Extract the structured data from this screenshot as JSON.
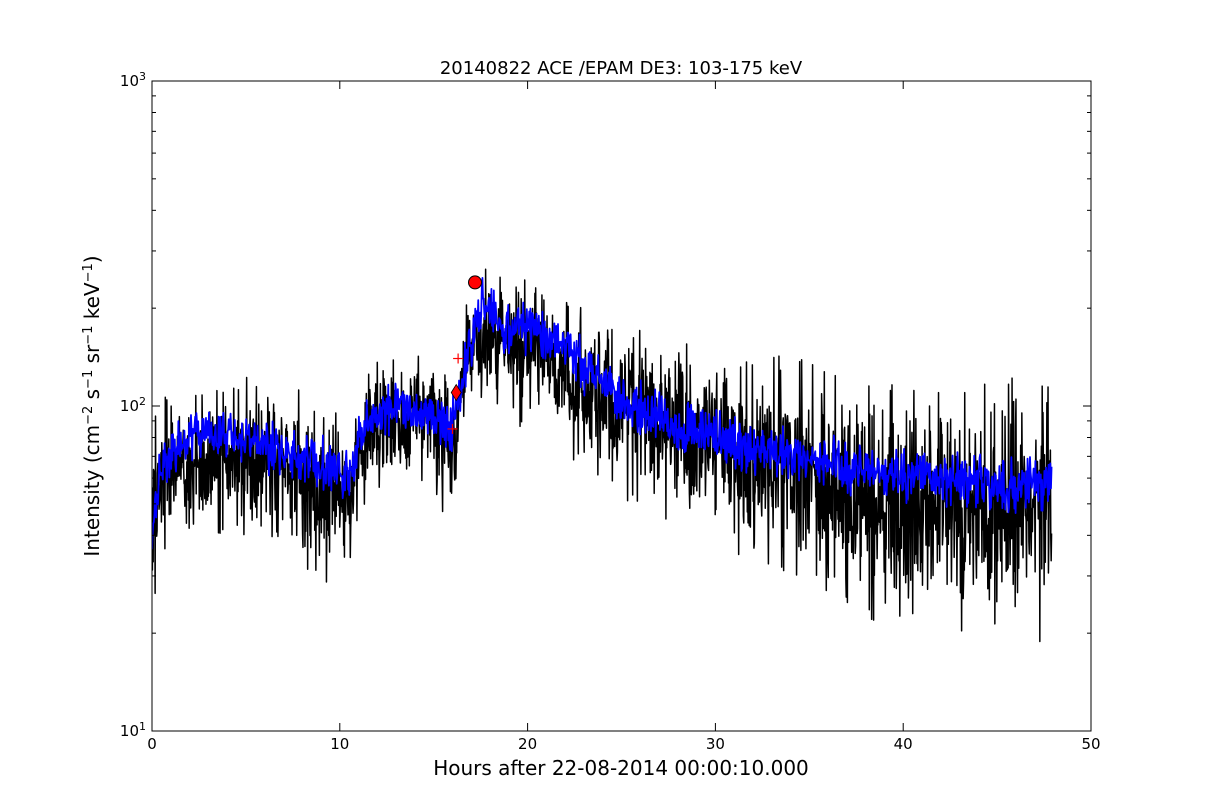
{
  "chart_data": {
    "type": "line",
    "title": "20140822 ACE /EPAM DE3: 103-175 keV",
    "xlabel": "Hours after 22-08-2014 00:00:10.000",
    "ylabel": {
      "parts": [
        {
          "t": "Intensity (cm",
          "sup": false
        },
        {
          "t": "−2",
          "sup": true
        },
        {
          "t": " s",
          "sup": false
        },
        {
          "t": "−1",
          "sup": true
        },
        {
          "t": " sr",
          "sup": false
        },
        {
          "t": "−1",
          "sup": true
        },
        {
          "t": " keV",
          "sup": false
        },
        {
          "t": "−1",
          "sup": true
        },
        {
          "t": ")",
          "sup": false
        }
      ]
    },
    "xlim": [
      0,
      50
    ],
    "ylim": [
      10,
      1000
    ],
    "yscale": "log",
    "grid": false,
    "x_ticks": [
      {
        "value": 0,
        "label": "0"
      },
      {
        "value": 10,
        "label": "10"
      },
      {
        "value": 20,
        "label": "20"
      },
      {
        "value": 30,
        "label": "30"
      },
      {
        "value": 40,
        "label": "40"
      },
      {
        "value": 50,
        "label": "50"
      }
    ],
    "y_ticks": [
      {
        "value": 10,
        "base": "10",
        "exp": "1"
      },
      {
        "value": 100,
        "base": "10",
        "exp": "2"
      },
      {
        "value": 1000,
        "base": "10",
        "exp": "3"
      }
    ],
    "series": [
      {
        "style": "raw",
        "color": "#000000",
        "x_range": [
          0,
          47.9
        ],
        "envelope": [
          {
            "x": 0.0,
            "low": 20,
            "high": 85
          },
          {
            "x": 0.5,
            "low": 35,
            "high": 105
          },
          {
            "x": 1.5,
            "low": 40,
            "high": 115
          },
          {
            "x": 3.0,
            "low": 42,
            "high": 110
          },
          {
            "x": 5.0,
            "low": 40,
            "high": 120
          },
          {
            "x": 7.0,
            "low": 38,
            "high": 115
          },
          {
            "x": 8.5,
            "low": 30,
            "high": 105
          },
          {
            "x": 10.0,
            "low": 30,
            "high": 100
          },
          {
            "x": 10.8,
            "low": 35,
            "high": 95
          },
          {
            "x": 11.5,
            "low": 55,
            "high": 130
          },
          {
            "x": 13.0,
            "low": 60,
            "high": 145
          },
          {
            "x": 15.0,
            "low": 55,
            "high": 150
          },
          {
            "x": 15.9,
            "low": 40,
            "high": 120
          },
          {
            "x": 16.3,
            "low": 70,
            "high": 140
          },
          {
            "x": 17.0,
            "low": 110,
            "high": 240
          },
          {
            "x": 18.0,
            "low": 100,
            "high": 265
          },
          {
            "x": 19.5,
            "low": 90,
            "high": 265
          },
          {
            "x": 21.0,
            "low": 90,
            "high": 230
          },
          {
            "x": 23.0,
            "low": 60,
            "high": 200
          },
          {
            "x": 25.0,
            "low": 55,
            "high": 180
          },
          {
            "x": 27.0,
            "low": 45,
            "high": 165
          },
          {
            "x": 30.0,
            "low": 40,
            "high": 150
          },
          {
            "x": 33.0,
            "low": 30,
            "high": 140
          },
          {
            "x": 36.0,
            "low": 25,
            "high": 130
          },
          {
            "x": 39.0,
            "low": 22,
            "high": 120
          },
          {
            "x": 42.0,
            "low": 21,
            "high": 120
          },
          {
            "x": 45.0,
            "low": 21,
            "high": 120
          },
          {
            "x": 47.9,
            "low": 20,
            "high": 115
          }
        ]
      },
      {
        "style": "smoothed",
        "color": "#0000ff",
        "x_range": [
          0,
          47.9
        ],
        "profile": [
          {
            "x": 0.0,
            "y": 42
          },
          {
            "x": 0.5,
            "y": 65
          },
          {
            "x": 1.5,
            "y": 78
          },
          {
            "x": 3.0,
            "y": 82
          },
          {
            "x": 5.0,
            "y": 80
          },
          {
            "x": 7.0,
            "y": 72
          },
          {
            "x": 9.0,
            "y": 66
          },
          {
            "x": 10.5,
            "y": 62
          },
          {
            "x": 11.5,
            "y": 90
          },
          {
            "x": 13.0,
            "y": 100
          },
          {
            "x": 15.0,
            "y": 92
          },
          {
            "x": 16.0,
            "y": 88
          },
          {
            "x": 16.5,
            "y": 120
          },
          {
            "x": 17.2,
            "y": 175
          },
          {
            "x": 17.6,
            "y": 205
          },
          {
            "x": 18.5,
            "y": 180
          },
          {
            "x": 20.0,
            "y": 170
          },
          {
            "x": 21.5,
            "y": 160
          },
          {
            "x": 23.0,
            "y": 130
          },
          {
            "x": 25.0,
            "y": 105
          },
          {
            "x": 28.0,
            "y": 88
          },
          {
            "x": 30.0,
            "y": 80
          },
          {
            "x": 33.0,
            "y": 72
          },
          {
            "x": 36.0,
            "y": 66
          },
          {
            "x": 39.0,
            "y": 62
          },
          {
            "x": 42.0,
            "y": 60
          },
          {
            "x": 45.0,
            "y": 57
          },
          {
            "x": 47.9,
            "y": 58
          }
        ]
      }
    ],
    "markers": [
      {
        "kind": "circle",
        "x": 17.2,
        "y": 240,
        "color": "#ff0000"
      },
      {
        "kind": "diamond",
        "x": 16.2,
        "y": 110,
        "color": "#ff0000"
      },
      {
        "kind": "plus",
        "x": 16.3,
        "y": 140,
        "color": "#ff0000"
      },
      {
        "kind": "plus",
        "x": 16.0,
        "y": 85,
        "color": "#ff0000"
      }
    ]
  }
}
